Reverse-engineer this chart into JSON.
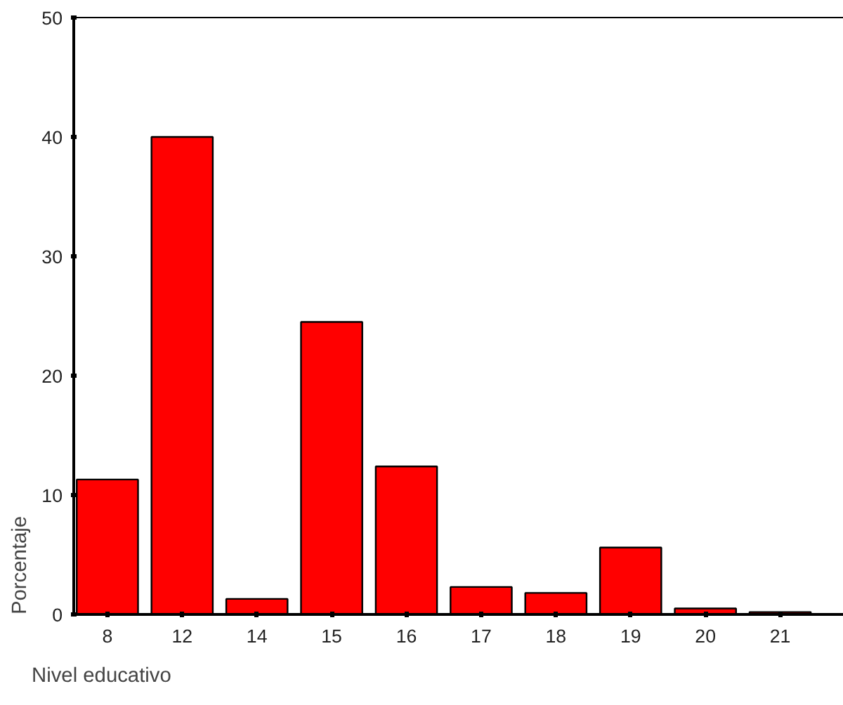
{
  "chart_data": {
    "type": "bar",
    "xlabel": "Nivel educativo",
    "ylabel": "Porcentaje",
    "categories": [
      "8",
      "12",
      "14",
      "15",
      "16",
      "17",
      "18",
      "19",
      "20",
      "21"
    ],
    "values": [
      11.3,
      40.0,
      1.3,
      24.5,
      12.4,
      2.3,
      1.8,
      5.6,
      0.5,
      0.2
    ],
    "color": "#ff0000",
    "ylim": [
      0,
      50
    ],
    "yticks": [
      0,
      10,
      20,
      30,
      40,
      50
    ],
    "grid": false
  }
}
